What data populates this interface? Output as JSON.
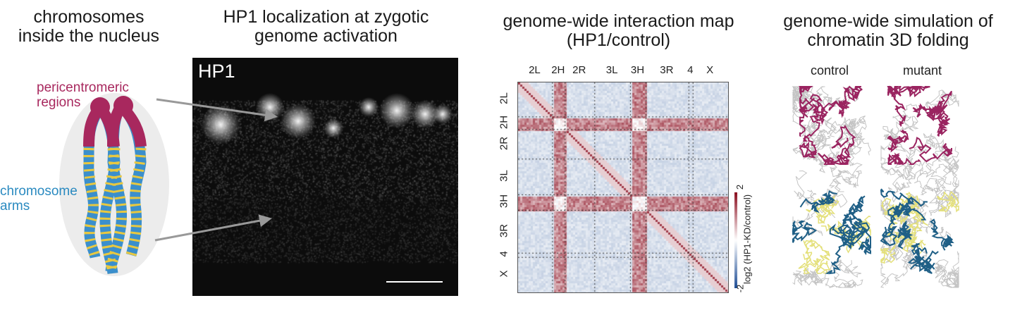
{
  "panels": {
    "nucleus": {
      "title": "chromosomes\ninside the nucleus",
      "label_pericentromeric": "pericentromeric\nregions",
      "label_arms": "chromosome\narms",
      "colors": {
        "pericentromeric": "#a8285e",
        "arms": "#2a8ac0",
        "bands": "#e8c840",
        "nucleus": "#ececec"
      }
    },
    "microscopy": {
      "title": "HP1 localization at zygotic\ngenome activation",
      "stain_label": "HP1"
    },
    "interaction_map": {
      "title": "genome-wide interaction map\n(HP1/control)",
      "segments": [
        "2L",
        "2H",
        "2R",
        "3L",
        "3H",
        "3R",
        "4",
        "X"
      ],
      "colorbar": {
        "max": "2",
        "min": "-2",
        "label": "log2 (HP1-KD/control)",
        "colors": [
          "#1f4e96",
          "#ffffff",
          "#8b0d1f"
        ]
      }
    },
    "simulation": {
      "title": "genome-wide simulation of\nchromatin 3D folding",
      "conditions": [
        "control",
        "mutant"
      ],
      "colors": {
        "other": "#c4c4c4",
        "pericentromeric": "#9a2460",
        "arm_blue": "#1f5f86",
        "arm_yellow": "#e4e07a"
      }
    }
  }
}
